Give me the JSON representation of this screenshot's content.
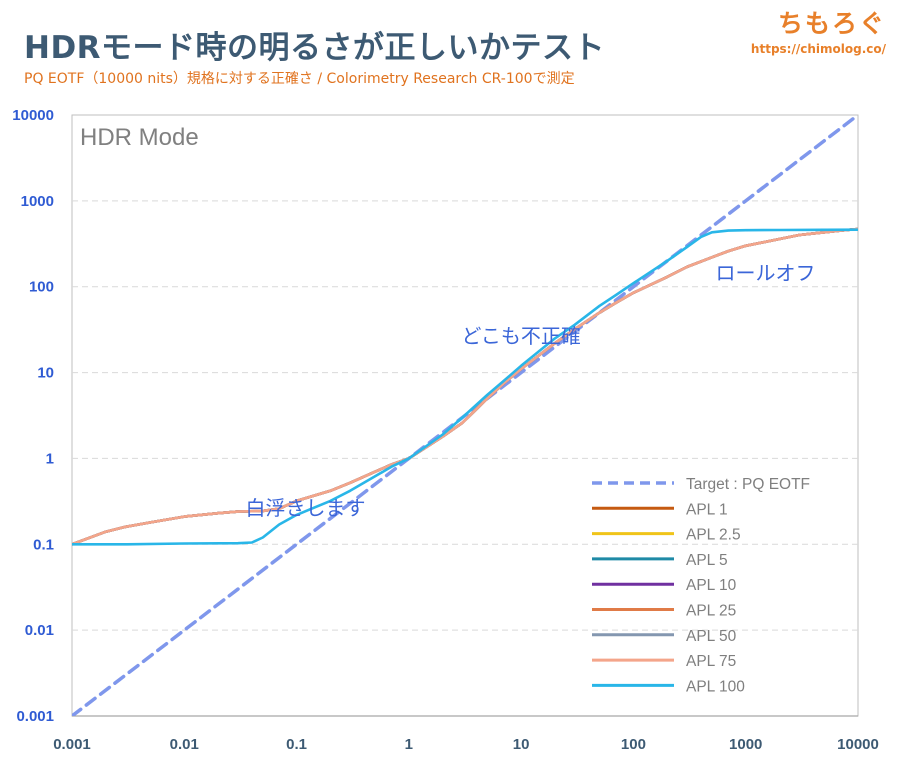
{
  "header": {
    "title": "HDRモード時の明るさが正しいかテスト",
    "subtitle": "PQ EOTF（10000 nits）規格に対する正確さ / Colorimetry Research CR-100で測定"
  },
  "logo": {
    "name": "ちもろぐ",
    "url": "https://chimolog.co/"
  },
  "chart_data": {
    "type": "line",
    "title": "HDR Mode",
    "xlabel": "",
    "ylabel": "",
    "xscale": "log",
    "yscale": "log",
    "xlim": [
      0.001,
      10000
    ],
    "ylim": [
      0.001,
      10000
    ],
    "x_ticks": [
      0.001,
      0.01,
      0.1,
      1,
      10,
      100,
      1000,
      10000
    ],
    "x_tick_labels": [
      "0.001",
      "0.01",
      "0.1",
      "1",
      "10",
      "100",
      "1000",
      "10000"
    ],
    "y_ticks": [
      0.001,
      0.01,
      0.1,
      1,
      10,
      100,
      1000,
      10000
    ],
    "y_tick_labels": [
      "0.001",
      "0.01",
      "0.1",
      "1",
      "10",
      "100",
      "1000",
      "10000"
    ],
    "grid": "horizontal-dashed",
    "legend_position": "bottom-right",
    "series": [
      {
        "name": "Target : PQ EOTF",
        "color": "#7f97ec",
        "style": "dashed",
        "points": [
          [
            0.001,
            0.001
          ],
          [
            10000,
            10000
          ]
        ]
      },
      {
        "name": "APL 1",
        "color": "#c55a11",
        "style": "solid",
        "points": [
          [
            0.001,
            0.1
          ],
          [
            0.002,
            0.14
          ],
          [
            0.003,
            0.16
          ],
          [
            0.005,
            0.18
          ],
          [
            0.01,
            0.21
          ],
          [
            0.02,
            0.23
          ],
          [
            0.03,
            0.24
          ],
          [
            0.05,
            0.245
          ],
          [
            0.07,
            0.26
          ],
          [
            0.1,
            0.32
          ],
          [
            0.2,
            0.42
          ],
          [
            0.3,
            0.52
          ],
          [
            0.5,
            0.7
          ],
          [
            0.7,
            0.85
          ],
          [
            1,
            1.0
          ],
          [
            2,
            1.8
          ],
          [
            3,
            2.6
          ],
          [
            5,
            5.0
          ],
          [
            7,
            7.5
          ],
          [
            10,
            11
          ],
          [
            20,
            22
          ],
          [
            30,
            32
          ],
          [
            50,
            50
          ],
          [
            70,
            65
          ],
          [
            100,
            85
          ],
          [
            200,
            130
          ],
          [
            300,
            170
          ],
          [
            500,
            220
          ],
          [
            700,
            260
          ],
          [
            1000,
            300
          ],
          [
            2000,
            360
          ],
          [
            3000,
            400
          ],
          [
            5000,
            430
          ],
          [
            7000,
            450
          ],
          [
            10000,
            470
          ]
        ]
      },
      {
        "name": "APL 2.5",
        "color": "#f0c419",
        "style": "solid",
        "points": [
          [
            0.001,
            0.1
          ],
          [
            0.002,
            0.14
          ],
          [
            0.003,
            0.16
          ],
          [
            0.005,
            0.18
          ],
          [
            0.01,
            0.21
          ],
          [
            0.02,
            0.23
          ],
          [
            0.03,
            0.24
          ],
          [
            0.05,
            0.245
          ],
          [
            0.07,
            0.26
          ],
          [
            0.1,
            0.32
          ],
          [
            0.2,
            0.42
          ],
          [
            0.3,
            0.52
          ],
          [
            0.5,
            0.7
          ],
          [
            0.7,
            0.85
          ],
          [
            1,
            1.0
          ],
          [
            2,
            1.8
          ],
          [
            3,
            2.6
          ],
          [
            5,
            5.0
          ],
          [
            7,
            7.5
          ],
          [
            10,
            11
          ],
          [
            20,
            22
          ],
          [
            30,
            32
          ],
          [
            50,
            50
          ],
          [
            70,
            65
          ],
          [
            100,
            85
          ],
          [
            200,
            130
          ],
          [
            300,
            170
          ],
          [
            500,
            220
          ],
          [
            700,
            260
          ],
          [
            1000,
            300
          ],
          [
            2000,
            360
          ],
          [
            3000,
            400
          ],
          [
            5000,
            430
          ],
          [
            7000,
            450
          ],
          [
            10000,
            470
          ]
        ]
      },
      {
        "name": "APL 5",
        "color": "#1f8aa6",
        "style": "solid",
        "points": [
          [
            0.001,
            0.1
          ],
          [
            0.002,
            0.14
          ],
          [
            0.003,
            0.16
          ],
          [
            0.005,
            0.18
          ],
          [
            0.01,
            0.21
          ],
          [
            0.02,
            0.23
          ],
          [
            0.03,
            0.24
          ],
          [
            0.05,
            0.245
          ],
          [
            0.07,
            0.26
          ],
          [
            0.1,
            0.32
          ],
          [
            0.2,
            0.42
          ],
          [
            0.3,
            0.52
          ],
          [
            0.5,
            0.7
          ],
          [
            0.7,
            0.85
          ],
          [
            1,
            1.0
          ],
          [
            2,
            1.8
          ],
          [
            3,
            2.6
          ],
          [
            5,
            5.0
          ],
          [
            7,
            7.5
          ],
          [
            10,
            11
          ],
          [
            20,
            22
          ],
          [
            30,
            32
          ],
          [
            50,
            50
          ],
          [
            70,
            65
          ],
          [
            100,
            85
          ],
          [
            200,
            130
          ],
          [
            300,
            170
          ],
          [
            500,
            220
          ],
          [
            700,
            260
          ],
          [
            1000,
            300
          ],
          [
            2000,
            360
          ],
          [
            3000,
            400
          ],
          [
            5000,
            430
          ],
          [
            7000,
            450
          ],
          [
            10000,
            470
          ]
        ]
      },
      {
        "name": "APL 10",
        "color": "#7030a0",
        "style": "solid",
        "points": [
          [
            0.001,
            0.1
          ],
          [
            0.002,
            0.14
          ],
          [
            0.003,
            0.16
          ],
          [
            0.005,
            0.18
          ],
          [
            0.01,
            0.21
          ],
          [
            0.02,
            0.23
          ],
          [
            0.03,
            0.24
          ],
          [
            0.05,
            0.245
          ],
          [
            0.07,
            0.26
          ],
          [
            0.1,
            0.32
          ],
          [
            0.2,
            0.42
          ],
          [
            0.3,
            0.52
          ],
          [
            0.5,
            0.7
          ],
          [
            0.7,
            0.85
          ],
          [
            1,
            1.0
          ],
          [
            2,
            1.8
          ],
          [
            3,
            2.6
          ],
          [
            5,
            5.0
          ],
          [
            7,
            7.5
          ],
          [
            10,
            11
          ],
          [
            20,
            22
          ],
          [
            30,
            32
          ],
          [
            50,
            50
          ],
          [
            70,
            65
          ],
          [
            100,
            85
          ],
          [
            200,
            130
          ],
          [
            300,
            170
          ],
          [
            500,
            220
          ],
          [
            700,
            260
          ],
          [
            1000,
            300
          ],
          [
            2000,
            360
          ],
          [
            3000,
            400
          ],
          [
            5000,
            430
          ],
          [
            7000,
            450
          ],
          [
            10000,
            470
          ]
        ]
      },
      {
        "name": "APL 25",
        "color": "#e07b47",
        "style": "solid",
        "points": [
          [
            0.001,
            0.1
          ],
          [
            0.002,
            0.14
          ],
          [
            0.003,
            0.16
          ],
          [
            0.005,
            0.18
          ],
          [
            0.01,
            0.21
          ],
          [
            0.02,
            0.23
          ],
          [
            0.03,
            0.24
          ],
          [
            0.05,
            0.245
          ],
          [
            0.07,
            0.26
          ],
          [
            0.1,
            0.32
          ],
          [
            0.2,
            0.42
          ],
          [
            0.3,
            0.52
          ],
          [
            0.5,
            0.7
          ],
          [
            0.7,
            0.85
          ],
          [
            1,
            1.0
          ],
          [
            2,
            1.8
          ],
          [
            3,
            2.6
          ],
          [
            5,
            5.0
          ],
          [
            7,
            7.5
          ],
          [
            10,
            11
          ],
          [
            20,
            22
          ],
          [
            30,
            32
          ],
          [
            50,
            50
          ],
          [
            70,
            65
          ],
          [
            100,
            85
          ],
          [
            200,
            130
          ],
          [
            300,
            170
          ],
          [
            500,
            220
          ],
          [
            700,
            260
          ],
          [
            1000,
            300
          ],
          [
            2000,
            360
          ],
          [
            3000,
            400
          ],
          [
            5000,
            430
          ],
          [
            7000,
            450
          ],
          [
            10000,
            470
          ]
        ]
      },
      {
        "name": "APL 50",
        "color": "#8497b0",
        "style": "solid",
        "points": [
          [
            0.001,
            0.1
          ],
          [
            0.002,
            0.14
          ],
          [
            0.003,
            0.16
          ],
          [
            0.005,
            0.18
          ],
          [
            0.01,
            0.21
          ],
          [
            0.02,
            0.23
          ],
          [
            0.03,
            0.24
          ],
          [
            0.05,
            0.245
          ],
          [
            0.07,
            0.26
          ],
          [
            0.1,
            0.32
          ],
          [
            0.2,
            0.42
          ],
          [
            0.3,
            0.52
          ],
          [
            0.5,
            0.7
          ],
          [
            0.7,
            0.85
          ],
          [
            1,
            1.0
          ],
          [
            2,
            1.8
          ],
          [
            3,
            2.6
          ],
          [
            5,
            5.0
          ],
          [
            7,
            7.5
          ],
          [
            10,
            11
          ],
          [
            20,
            22
          ],
          [
            30,
            32
          ],
          [
            50,
            50
          ],
          [
            70,
            65
          ],
          [
            100,
            85
          ],
          [
            200,
            130
          ],
          [
            300,
            170
          ],
          [
            500,
            220
          ],
          [
            700,
            260
          ],
          [
            1000,
            300
          ],
          [
            2000,
            360
          ],
          [
            3000,
            400
          ],
          [
            5000,
            430
          ],
          [
            7000,
            450
          ],
          [
            10000,
            470
          ]
        ]
      },
      {
        "name": "APL 75",
        "color": "#f4a58a",
        "style": "solid",
        "points": [
          [
            0.001,
            0.1
          ],
          [
            0.002,
            0.14
          ],
          [
            0.003,
            0.16
          ],
          [
            0.005,
            0.18
          ],
          [
            0.01,
            0.21
          ],
          [
            0.02,
            0.23
          ],
          [
            0.03,
            0.24
          ],
          [
            0.05,
            0.245
          ],
          [
            0.07,
            0.26
          ],
          [
            0.1,
            0.32
          ],
          [
            0.2,
            0.42
          ],
          [
            0.3,
            0.52
          ],
          [
            0.5,
            0.7
          ],
          [
            0.7,
            0.85
          ],
          [
            1,
            1.0
          ],
          [
            2,
            1.8
          ],
          [
            3,
            2.6
          ],
          [
            5,
            5.0
          ],
          [
            7,
            7.5
          ],
          [
            10,
            11
          ],
          [
            20,
            22
          ],
          [
            30,
            32
          ],
          [
            50,
            50
          ],
          [
            70,
            65
          ],
          [
            100,
            85
          ],
          [
            200,
            130
          ],
          [
            300,
            170
          ],
          [
            500,
            220
          ],
          [
            700,
            260
          ],
          [
            1000,
            300
          ],
          [
            2000,
            360
          ],
          [
            3000,
            400
          ],
          [
            5000,
            430
          ],
          [
            7000,
            450
          ],
          [
            10000,
            470
          ]
        ]
      },
      {
        "name": "APL 100",
        "color": "#29b6e8",
        "style": "solid",
        "points": [
          [
            0.001,
            0.1
          ],
          [
            0.003,
            0.1
          ],
          [
            0.01,
            0.102
          ],
          [
            0.03,
            0.103
          ],
          [
            0.04,
            0.105
          ],
          [
            0.05,
            0.12
          ],
          [
            0.07,
            0.17
          ],
          [
            0.1,
            0.22
          ],
          [
            0.2,
            0.32
          ],
          [
            0.3,
            0.42
          ],
          [
            0.5,
            0.62
          ],
          [
            0.7,
            0.8
          ],
          [
            1,
            1.0
          ],
          [
            2,
            1.9
          ],
          [
            3,
            3.0
          ],
          [
            5,
            5.5
          ],
          [
            7,
            8
          ],
          [
            10,
            12
          ],
          [
            20,
            25
          ],
          [
            30,
            36
          ],
          [
            50,
            60
          ],
          [
            70,
            80
          ],
          [
            100,
            110
          ],
          [
            200,
            200
          ],
          [
            300,
            290
          ],
          [
            400,
            380
          ],
          [
            500,
            430
          ],
          [
            700,
            450
          ],
          [
            1000,
            455
          ],
          [
            2000,
            458
          ],
          [
            5000,
            460
          ],
          [
            10000,
            462
          ]
        ]
      }
    ],
    "annotations": [
      {
        "text": "白浮きします",
        "x": 0.12,
        "y": 0.22
      },
      {
        "text": "どこも不正確",
        "x": 10,
        "y": 22
      },
      {
        "text": "ロールオフ",
        "x": 1500,
        "y": 120
      }
    ]
  }
}
